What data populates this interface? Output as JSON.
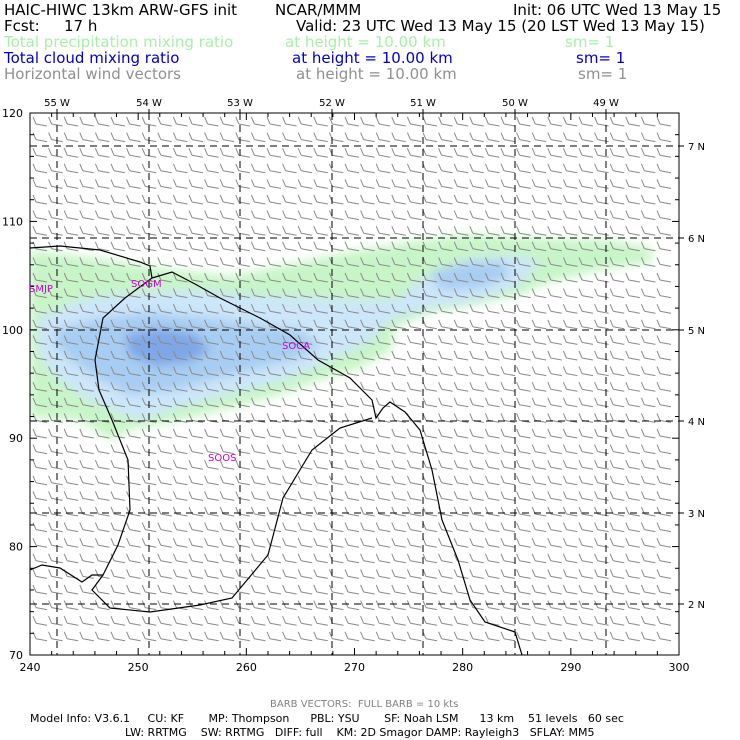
{
  "header": {
    "title_left": "HAIC-HIWC 13km ARW-GFS init",
    "source": "NCAR/MMM",
    "init": "Init: 06 UTC Wed 13 May 15",
    "fcst_label": "Fcst:",
    "fcst_value": "17 h",
    "valid": "Valid: 23 UTC Wed 13 May 15 (20 LST Wed 13 May 15)",
    "fields": [
      {
        "name": "Total precipitation mixing ratio",
        "height": "at height = 10.00 km",
        "sm": "sm= 1",
        "color": "#a8f0a8"
      },
      {
        "name": "Total cloud mixing ratio",
        "height": "at height = 10.00 km",
        "sm": "sm= 1",
        "color": "#0000c8"
      },
      {
        "name": "Horizontal wind vectors",
        "height": "at height = 10.00 km",
        "sm": "sm= 1",
        "color": "#909090"
      }
    ]
  },
  "chart_data": {
    "type": "map",
    "x_grid": {
      "range": [
        240,
        300
      ],
      "ticks": [
        240,
        250,
        260,
        270,
        280,
        290,
        300
      ]
    },
    "y_grid": {
      "range": [
        70,
        120
      ],
      "ticks": [
        70,
        80,
        90,
        100,
        110,
        120
      ]
    },
    "longitude_labels": [
      "55 W",
      "54 W",
      "53 W",
      "52 W",
      "51 W",
      "50 W",
      "49 W"
    ],
    "latitude_labels": [
      "7 N",
      "6 N",
      "5 N",
      "4 N",
      "3 N",
      "2 N"
    ],
    "stations": [
      "SMJP",
      "SOCA",
      "SOGM",
      "SOOS"
    ],
    "colors": {
      "precip": "#c8f5c8",
      "cloud_light": "#cce6fa",
      "cloud_mid": "#a8cdf2",
      "cloud_dark": "#7fa6e6",
      "coast": "#000000",
      "barb": "#8a8a8a",
      "station": "#cc00cc"
    }
  },
  "footer": {
    "barb_note": "BARB VECTORS:  FULL BARB = 10 kts",
    "model_line1": "Model Info: V3.6.1     CU: KF       MP: Thompson      PBL: YSU       SF: Noah LSM      13 km    51 levels   60 sec",
    "model_line2": "LW: RRTMG    SW: RRTMG   DIFF: full    KM: 2D Smagor DAMP: Rayleigh3   SFLAY: MM5"
  }
}
